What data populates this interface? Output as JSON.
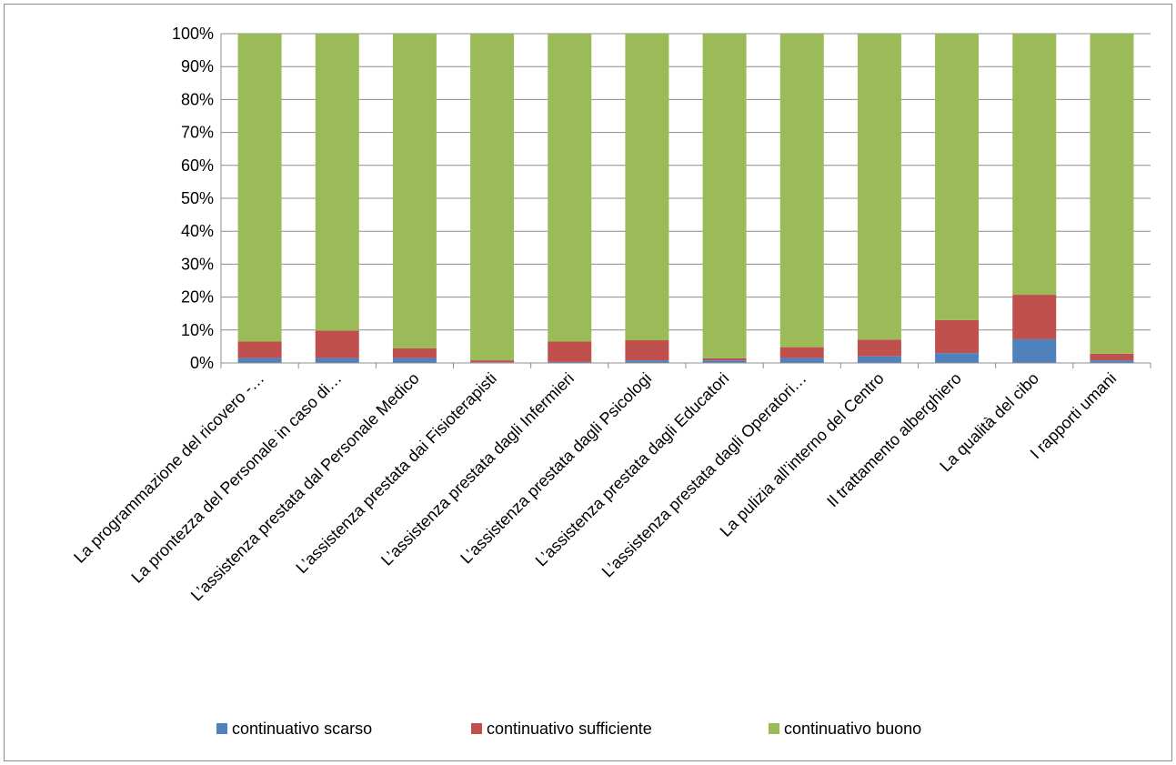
{
  "chart_data": {
    "type": "bar",
    "stacked": true,
    "percent": true,
    "categories": [
      "La programmazione del ricovero -…",
      "La prontezza del Personale in caso di…",
      "L’assistenza prestata dal Personale Medico",
      "L’assistenza prestata dai Fisioterapisti",
      "L’assistenza prestata dagli Infermieri",
      "L’assistenza prestata dagli Psicologi",
      "L’assistenza prestata dagli Educatori",
      "L’assistenza prestata dagli Operatori…",
      "La pulizia all’interno del Centro",
      "Il trattamento alberghiero",
      "La qualità del cibo",
      "I rapporti umani"
    ],
    "series": [
      {
        "name": "continuativo scarso",
        "color": "#4f81bd",
        "values": [
          1.5,
          1.5,
          1.5,
          0.2,
          0.3,
          0.8,
          0.8,
          1.5,
          2.0,
          3.0,
          7.2,
          0.8
        ]
      },
      {
        "name": "continuativo sufficiente",
        "color": "#c0504d",
        "values": [
          5.0,
          8.3,
          3.0,
          0.6,
          6.2,
          6.1,
          0.6,
          3.3,
          5.1,
          10.0,
          13.5,
          2.0
        ]
      },
      {
        "name": "continuativo buono",
        "color": "#9bbb59",
        "values": [
          93.5,
          90.2,
          95.5,
          99.2,
          93.5,
          93.1,
          98.6,
          95.2,
          92.9,
          87.0,
          79.3,
          97.2
        ]
      }
    ],
    "ylim": [
      0,
      100
    ],
    "yticks": [
      "0%",
      "10%",
      "20%",
      "30%",
      "40%",
      "50%",
      "60%",
      "70%",
      "80%",
      "90%",
      "100%"
    ],
    "grid": true,
    "legend": "bottom"
  }
}
